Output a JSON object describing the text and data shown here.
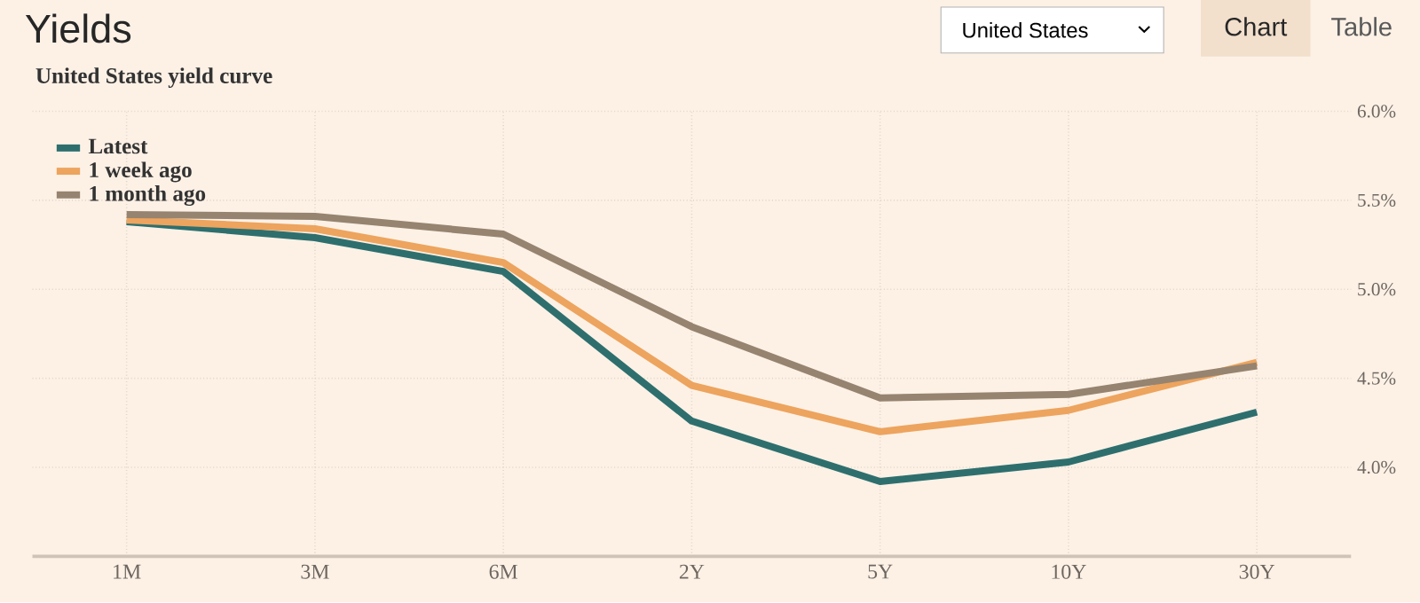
{
  "chart_data": {
    "type": "line",
    "title": "Yields",
    "subtitle": "United States yield curve",
    "categories": [
      "1M",
      "3M",
      "6M",
      "2Y",
      "5Y",
      "10Y",
      "30Y"
    ],
    "series": [
      {
        "name": "Latest",
        "color": "#2e6f6e",
        "values": [
          5.38,
          5.29,
          5.1,
          4.26,
          3.92,
          4.03,
          4.31
        ]
      },
      {
        "name": "1 week ago",
        "color": "#eda45e",
        "values": [
          5.39,
          5.34,
          5.15,
          4.46,
          4.2,
          4.32,
          4.59
        ]
      },
      {
        "name": "1 month ago",
        "color": "#968470",
        "values": [
          5.42,
          5.41,
          5.31,
          4.79,
          4.39,
          4.41,
          4.57
        ]
      }
    ],
    "ylim": [
      3.5,
      6.0
    ],
    "yticks": [
      {
        "value": 4.0,
        "label": "4.0%"
      },
      {
        "value": 4.5,
        "label": "4.5%"
      },
      {
        "value": 5.0,
        "label": "5.0%"
      },
      {
        "value": 5.5,
        "label": "5.5%"
      },
      {
        "value": 6.0,
        "label": "6.0%"
      }
    ],
    "grid": true,
    "legend": "top left",
    "marker": "none",
    "line_style": "solid",
    "annotations": [
      "United States",
      "Chart",
      "Table"
    ]
  }
}
